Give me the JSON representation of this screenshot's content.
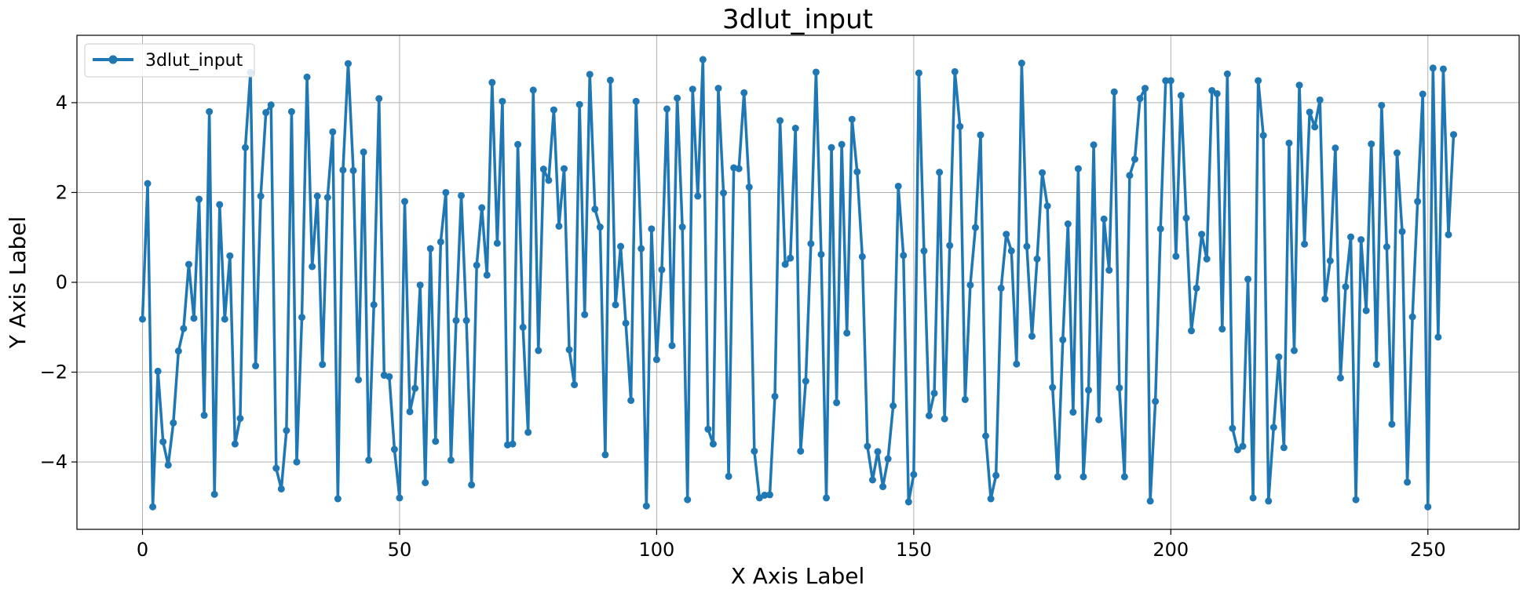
{
  "chart_data": {
    "type": "line",
    "title": "3dlut_input",
    "xlabel": "X Axis Label",
    "ylabel": "Y Axis Label",
    "xlim": [
      -12.75,
      267.75
    ],
    "ylim": [
      -5.5,
      5.5
    ],
    "xticks": [
      0,
      50,
      100,
      150,
      200,
      250
    ],
    "yticks": [
      -4,
      -2,
      0,
      2,
      4
    ],
    "grid": true,
    "legend_position": "top-left",
    "series": [
      {
        "name": "3dlut_input",
        "color": "#1f77b4",
        "marker": "circle",
        "x": [
          0,
          1,
          2,
          3,
          4,
          5,
          6,
          7,
          8,
          9,
          10,
          11,
          12,
          13,
          14,
          15,
          16,
          17,
          18,
          19,
          20,
          21,
          22,
          23,
          24,
          25,
          26,
          27,
          28,
          29,
          30,
          31,
          32,
          33,
          34,
          35,
          36,
          37,
          38,
          39,
          40,
          41,
          42,
          43,
          44,
          45,
          46,
          47,
          48,
          49,
          50,
          51,
          52,
          53,
          54,
          55,
          56,
          57,
          58,
          59,
          60,
          61,
          62,
          63,
          64,
          65,
          66,
          67,
          68,
          69,
          70,
          71,
          72,
          73,
          74,
          75,
          76,
          77,
          78,
          79,
          80,
          81,
          82,
          83,
          84,
          85,
          86,
          87,
          88,
          89,
          90,
          91,
          92,
          93,
          94,
          95,
          96,
          97,
          98,
          99,
          100,
          101,
          102,
          103,
          104,
          105,
          106,
          107,
          108,
          109,
          110,
          111,
          112,
          113,
          114,
          115,
          116,
          117,
          118,
          119,
          120,
          121,
          122,
          123,
          124,
          125,
          126,
          127,
          128,
          129,
          130,
          131,
          132,
          133,
          134,
          135,
          136,
          137,
          138,
          139,
          140,
          141,
          142,
          143,
          144,
          145,
          146,
          147,
          148,
          149,
          150,
          151,
          152,
          153,
          154,
          155,
          156,
          157,
          158,
          159,
          160,
          161,
          162,
          163,
          164,
          165,
          166,
          167,
          168,
          169,
          170,
          171,
          172,
          173,
          174,
          175,
          176,
          177,
          178,
          179,
          180,
          181,
          182,
          183,
          184,
          185,
          186,
          187,
          188,
          189,
          190,
          191,
          192,
          193,
          194,
          195,
          196,
          197,
          198,
          199,
          200,
          201,
          202,
          203,
          204,
          205,
          206,
          207,
          208,
          209,
          210,
          211,
          212,
          213,
          214,
          215,
          216,
          217,
          218,
          219,
          220,
          221,
          222,
          223,
          224,
          225,
          226,
          227,
          228,
          229,
          230,
          231,
          232,
          233,
          234,
          235,
          236,
          237,
          238,
          239,
          240,
          241,
          242,
          243,
          244,
          245,
          246,
          247,
          248,
          249,
          250,
          251,
          252,
          253,
          254,
          255
        ],
        "y": [
          -0.82,
          2.2,
          -5.0,
          -1.98,
          -3.55,
          -4.07,
          -3.13,
          -1.53,
          -1.03,
          0.4,
          -0.8,
          1.85,
          -2.96,
          3.8,
          -4.72,
          1.73,
          -0.82,
          0.59,
          -3.6,
          -3.03,
          3.0,
          4.67,
          -1.86,
          1.92,
          3.78,
          3.95,
          -4.14,
          -4.6,
          -3.3,
          3.8,
          -4.0,
          -0.78,
          4.57,
          0.35,
          1.92,
          -1.83,
          1.89,
          3.35,
          -4.82,
          2.5,
          4.87,
          2.49,
          -2.17,
          2.9,
          -3.96,
          -0.5,
          4.09,
          -2.07,
          -2.1,
          -3.72,
          -4.8,
          1.8,
          -2.88,
          -2.36,
          -0.06,
          -4.46,
          0.75,
          -3.54,
          0.9,
          2.0,
          -3.96,
          -0.85,
          1.93,
          -0.85,
          -4.51,
          0.38,
          1.66,
          0.16,
          4.45,
          0.87,
          4.03,
          -3.62,
          -3.6,
          3.07,
          -1.0,
          -3.34,
          4.28,
          -1.52,
          2.52,
          2.27,
          3.84,
          1.25,
          2.53,
          -1.5,
          -2.28,
          3.96,
          -0.72,
          4.63,
          1.63,
          1.23,
          -3.84,
          4.5,
          -0.5,
          0.8,
          -0.91,
          -2.63,
          4.03,
          0.75,
          -4.98,
          1.19,
          -1.72,
          0.28,
          3.86,
          -1.41,
          4.1,
          1.23,
          -4.84,
          4.3,
          1.92,
          4.96,
          -3.27,
          -3.6,
          4.32,
          1.99,
          -4.32,
          2.55,
          2.53,
          4.22,
          2.12,
          -3.76,
          -4.8,
          -4.74,
          -4.73,
          -2.54,
          3.6,
          0.4,
          0.54,
          3.43,
          -3.76,
          -2.2,
          0.86,
          4.68,
          0.62,
          -4.8,
          3.0,
          -2.68,
          3.07,
          -1.13,
          3.63,
          2.46,
          0.57,
          -3.65,
          -4.4,
          -3.77,
          -4.55,
          -3.93,
          -2.75,
          2.14,
          0.6,
          -4.89,
          -4.28,
          4.66,
          0.7,
          -2.97,
          -2.47,
          2.45,
          -3.04,
          0.82,
          4.69,
          3.47,
          -2.61,
          -0.06,
          1.22,
          3.28,
          -3.42,
          -4.82,
          -4.3,
          -0.13,
          1.07,
          0.7,
          -1.82,
          4.88,
          0.8,
          -1.2,
          0.52,
          2.44,
          1.7,
          -2.34,
          -4.33,
          -1.28,
          1.3,
          -2.89,
          2.53,
          -4.33,
          -2.4,
          3.06,
          -3.06,
          1.41,
          0.27,
          4.24,
          -2.35,
          -4.33,
          2.38,
          2.74,
          4.09,
          4.32,
          -4.87,
          -2.65,
          1.19,
          4.49,
          4.49,
          0.58,
          4.16,
          1.43,
          -1.08,
          -0.13,
          1.07,
          0.52,
          4.27,
          4.2,
          -1.04,
          4.64,
          -3.25,
          -3.73,
          -3.65,
          0.07,
          -4.8,
          4.49,
          3.27,
          -4.87,
          -3.23,
          -1.66,
          -3.68,
          3.1,
          -1.52,
          4.39,
          0.85,
          3.79,
          3.46,
          4.06,
          -0.37,
          0.48,
          2.99,
          -2.13,
          -0.1,
          1.01,
          -4.84,
          0.95,
          -0.63,
          3.08,
          -1.83,
          3.94,
          0.79,
          -3.16,
          2.88,
          1.13,
          -4.45,
          -0.77,
          1.8,
          4.19,
          -5.0,
          4.77,
          -1.22,
          4.75,
          1.06,
          3.29
        ]
      }
    ]
  }
}
